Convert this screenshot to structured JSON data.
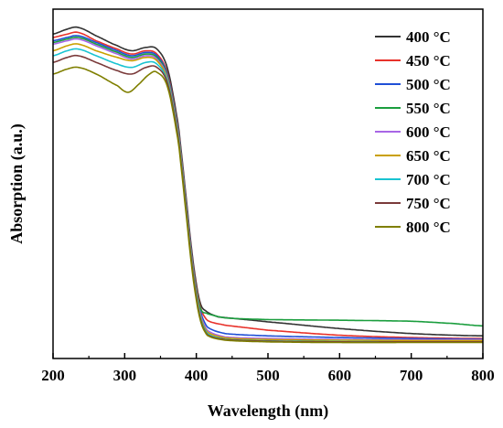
{
  "chart_data": {
    "type": "line",
    "xlabel": "Wavelength (nm)",
    "ylabel": "Absorption (a.u.)",
    "xlim": [
      200,
      800
    ],
    "ylim": [
      0,
      1.05
    ],
    "x_ticks": [
      "200",
      "300",
      "400",
      "500",
      "600",
      "700",
      "800"
    ],
    "y_ticks_shown": false,
    "grid": false,
    "legend_position": "top-right",
    "series": [
      {
        "name": "400 °C",
        "color": "#333333",
        "points": [
          [
            200,
            0.975
          ],
          [
            220,
            0.99
          ],
          [
            235,
            0.995
          ],
          [
            260,
            0.97
          ],
          [
            290,
            0.94
          ],
          [
            310,
            0.925
          ],
          [
            330,
            0.935
          ],
          [
            345,
            0.93
          ],
          [
            360,
            0.87
          ],
          [
            375,
            0.7
          ],
          [
            385,
            0.5
          ],
          [
            395,
            0.3
          ],
          [
            405,
            0.17
          ],
          [
            415,
            0.14
          ],
          [
            430,
            0.125
          ],
          [
            500,
            0.11
          ],
          [
            600,
            0.09
          ],
          [
            700,
            0.075
          ],
          [
            800,
            0.068
          ]
        ]
      },
      {
        "name": "450 °C",
        "color": "#e8322b",
        "points": [
          [
            200,
            0.965
          ],
          [
            220,
            0.975
          ],
          [
            235,
            0.98
          ],
          [
            260,
            0.955
          ],
          [
            290,
            0.93
          ],
          [
            310,
            0.915
          ],
          [
            330,
            0.925
          ],
          [
            345,
            0.915
          ],
          [
            360,
            0.855
          ],
          [
            375,
            0.69
          ],
          [
            385,
            0.49
          ],
          [
            395,
            0.29
          ],
          [
            405,
            0.16
          ],
          [
            415,
            0.115
          ],
          [
            440,
            0.1
          ],
          [
            500,
            0.085
          ],
          [
            600,
            0.07
          ],
          [
            700,
            0.063
          ],
          [
            800,
            0.06
          ]
        ]
      },
      {
        "name": "500 °C",
        "color": "#1f4fd6",
        "points": [
          [
            200,
            0.955
          ],
          [
            220,
            0.965
          ],
          [
            235,
            0.97
          ],
          [
            260,
            0.95
          ],
          [
            290,
            0.925
          ],
          [
            310,
            0.91
          ],
          [
            330,
            0.92
          ],
          [
            345,
            0.91
          ],
          [
            360,
            0.85
          ],
          [
            375,
            0.685
          ],
          [
            385,
            0.485
          ],
          [
            395,
            0.285
          ],
          [
            405,
            0.15
          ],
          [
            415,
            0.095
          ],
          [
            440,
            0.075
          ],
          [
            500,
            0.068
          ],
          [
            600,
            0.063
          ],
          [
            700,
            0.06
          ],
          [
            800,
            0.058
          ]
        ]
      },
      {
        "name": "550 °C",
        "color": "#1b9e3e",
        "points": [
          [
            200,
            0.95
          ],
          [
            220,
            0.96
          ],
          [
            235,
            0.965
          ],
          [
            260,
            0.945
          ],
          [
            290,
            0.92
          ],
          [
            310,
            0.905
          ],
          [
            330,
            0.915
          ],
          [
            345,
            0.905
          ],
          [
            360,
            0.845
          ],
          [
            375,
            0.68
          ],
          [
            385,
            0.48
          ],
          [
            395,
            0.28
          ],
          [
            405,
            0.155
          ],
          [
            415,
            0.135
          ],
          [
            440,
            0.122
          ],
          [
            500,
            0.117
          ],
          [
            600,
            0.115
          ],
          [
            700,
            0.112
          ],
          [
            760,
            0.105
          ],
          [
            800,
            0.098
          ]
        ]
      },
      {
        "name": "600 °C",
        "color": "#a866e6",
        "points": [
          [
            200,
            0.945
          ],
          [
            220,
            0.955
          ],
          [
            235,
            0.96
          ],
          [
            260,
            0.94
          ],
          [
            290,
            0.915
          ],
          [
            310,
            0.9
          ],
          [
            330,
            0.91
          ],
          [
            345,
            0.9
          ],
          [
            360,
            0.84
          ],
          [
            375,
            0.675
          ],
          [
            385,
            0.475
          ],
          [
            395,
            0.275
          ],
          [
            405,
            0.14
          ],
          [
            415,
            0.085
          ],
          [
            440,
            0.065
          ],
          [
            500,
            0.06
          ],
          [
            600,
            0.057
          ],
          [
            700,
            0.056
          ],
          [
            800,
            0.056
          ]
        ]
      },
      {
        "name": "650 °C",
        "color": "#c9a000",
        "points": [
          [
            200,
            0.925
          ],
          [
            220,
            0.94
          ],
          [
            235,
            0.945
          ],
          [
            260,
            0.925
          ],
          [
            290,
            0.905
          ],
          [
            310,
            0.895
          ],
          [
            330,
            0.905
          ],
          [
            345,
            0.895
          ],
          [
            360,
            0.835
          ],
          [
            375,
            0.67
          ],
          [
            385,
            0.47
          ],
          [
            395,
            0.27
          ],
          [
            405,
            0.135
          ],
          [
            415,
            0.08
          ],
          [
            440,
            0.062
          ],
          [
            500,
            0.057
          ],
          [
            600,
            0.055
          ],
          [
            700,
            0.054
          ],
          [
            800,
            0.054
          ]
        ]
      },
      {
        "name": "700 °C",
        "color": "#19c3d1",
        "points": [
          [
            200,
            0.91
          ],
          [
            220,
            0.925
          ],
          [
            235,
            0.93
          ],
          [
            260,
            0.91
          ],
          [
            290,
            0.885
          ],
          [
            310,
            0.875
          ],
          [
            330,
            0.89
          ],
          [
            345,
            0.885
          ],
          [
            360,
            0.83
          ],
          [
            375,
            0.665
          ],
          [
            385,
            0.465
          ],
          [
            395,
            0.265
          ],
          [
            405,
            0.13
          ],
          [
            415,
            0.075
          ],
          [
            440,
            0.058
          ],
          [
            500,
            0.053
          ],
          [
            600,
            0.051
          ],
          [
            700,
            0.05
          ],
          [
            800,
            0.05
          ]
        ]
      },
      {
        "name": "750 °C",
        "color": "#7a3a3a",
        "points": [
          [
            200,
            0.89
          ],
          [
            220,
            0.905
          ],
          [
            235,
            0.91
          ],
          [
            260,
            0.89
          ],
          [
            290,
            0.865
          ],
          [
            310,
            0.855
          ],
          [
            330,
            0.875
          ],
          [
            345,
            0.875
          ],
          [
            360,
            0.825
          ],
          [
            375,
            0.66
          ],
          [
            385,
            0.46
          ],
          [
            395,
            0.26
          ],
          [
            405,
            0.125
          ],
          [
            415,
            0.072
          ],
          [
            440,
            0.057
          ],
          [
            500,
            0.052
          ],
          [
            600,
            0.05
          ],
          [
            700,
            0.05
          ],
          [
            800,
            0.05
          ]
        ]
      },
      {
        "name": "800 °C",
        "color": "#7f7f00",
        "points": [
          [
            200,
            0.855
          ],
          [
            220,
            0.87
          ],
          [
            235,
            0.875
          ],
          [
            260,
            0.855
          ],
          [
            290,
            0.82
          ],
          [
            305,
            0.8
          ],
          [
            320,
            0.825
          ],
          [
            335,
            0.855
          ],
          [
            345,
            0.86
          ],
          [
            360,
            0.815
          ],
          [
            375,
            0.65
          ],
          [
            385,
            0.45
          ],
          [
            395,
            0.25
          ],
          [
            405,
            0.12
          ],
          [
            415,
            0.07
          ],
          [
            440,
            0.055
          ],
          [
            500,
            0.05
          ],
          [
            600,
            0.048
          ],
          [
            700,
            0.048
          ],
          [
            800,
            0.048
          ]
        ]
      }
    ]
  }
}
